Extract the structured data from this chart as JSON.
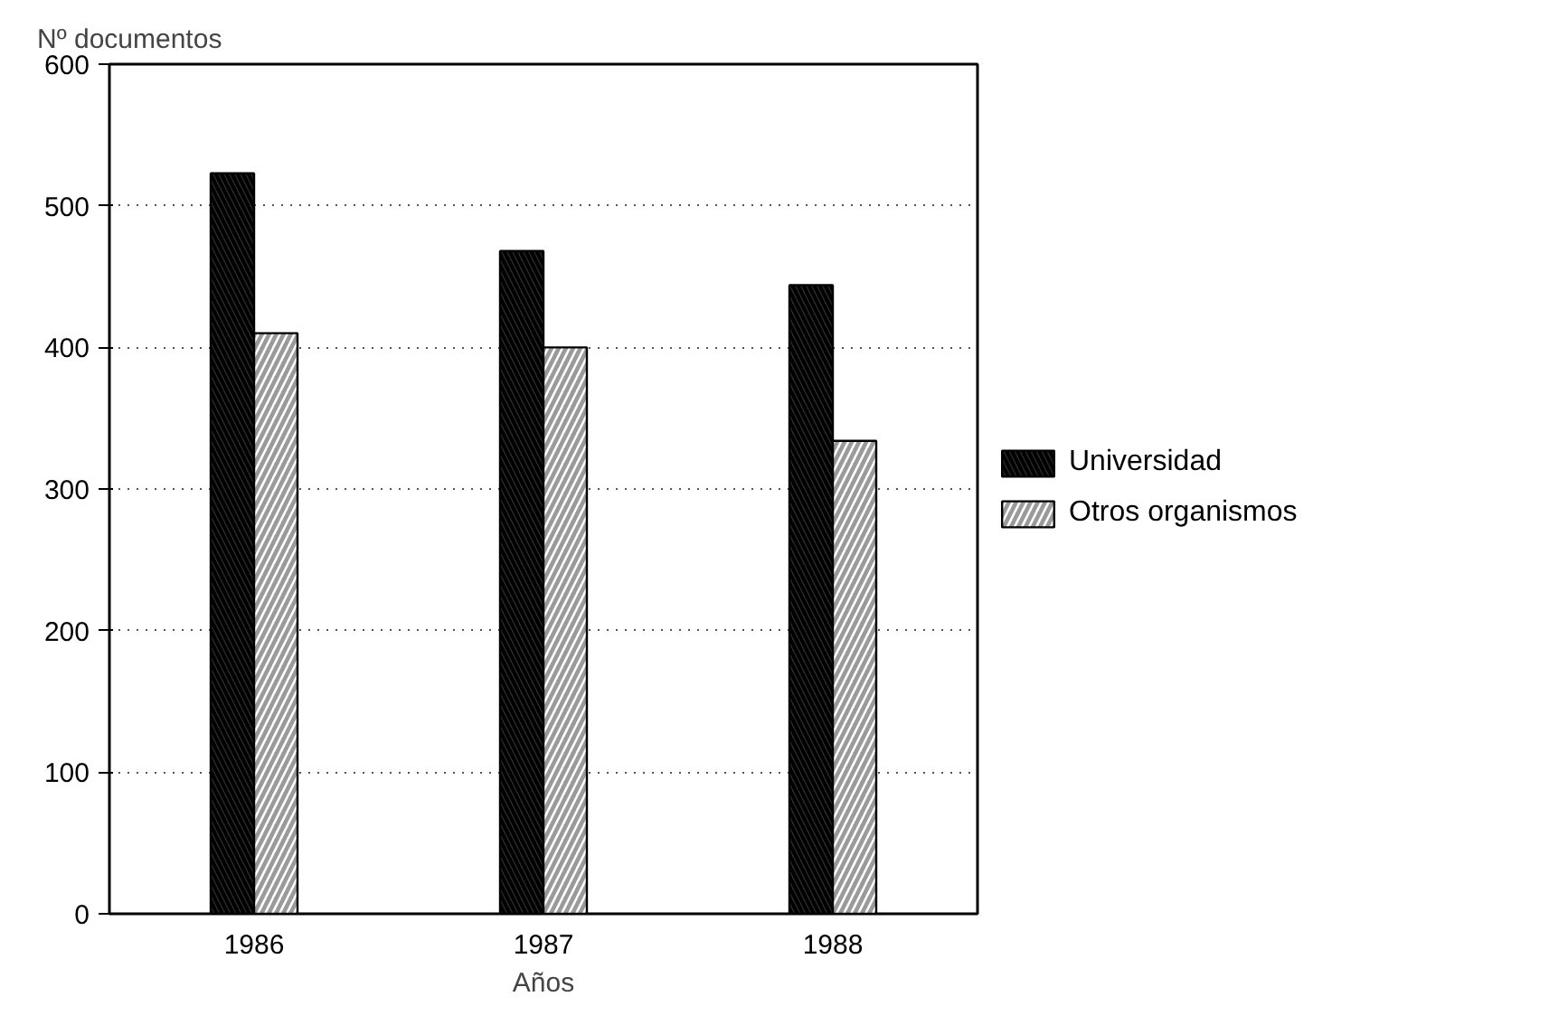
{
  "chart_data": {
    "type": "bar",
    "categories": [
      "1986",
      "1987",
      "1988"
    ],
    "xlabel": "Años",
    "ylabel": "Nº documentos",
    "series": [
      {
        "name": "Universidad",
        "color": "#2b2b2b",
        "values": [
          523,
          468,
          444
        ]
      },
      {
        "name": "Otros organismos",
        "color": "#9a9a9a",
        "values": [
          410,
          400,
          334
        ]
      }
    ],
    "ylim": [
      0,
      600
    ],
    "yticks": [
      0,
      100,
      200,
      300,
      400,
      500,
      600
    ],
    "grid": "y",
    "legend": "right"
  }
}
